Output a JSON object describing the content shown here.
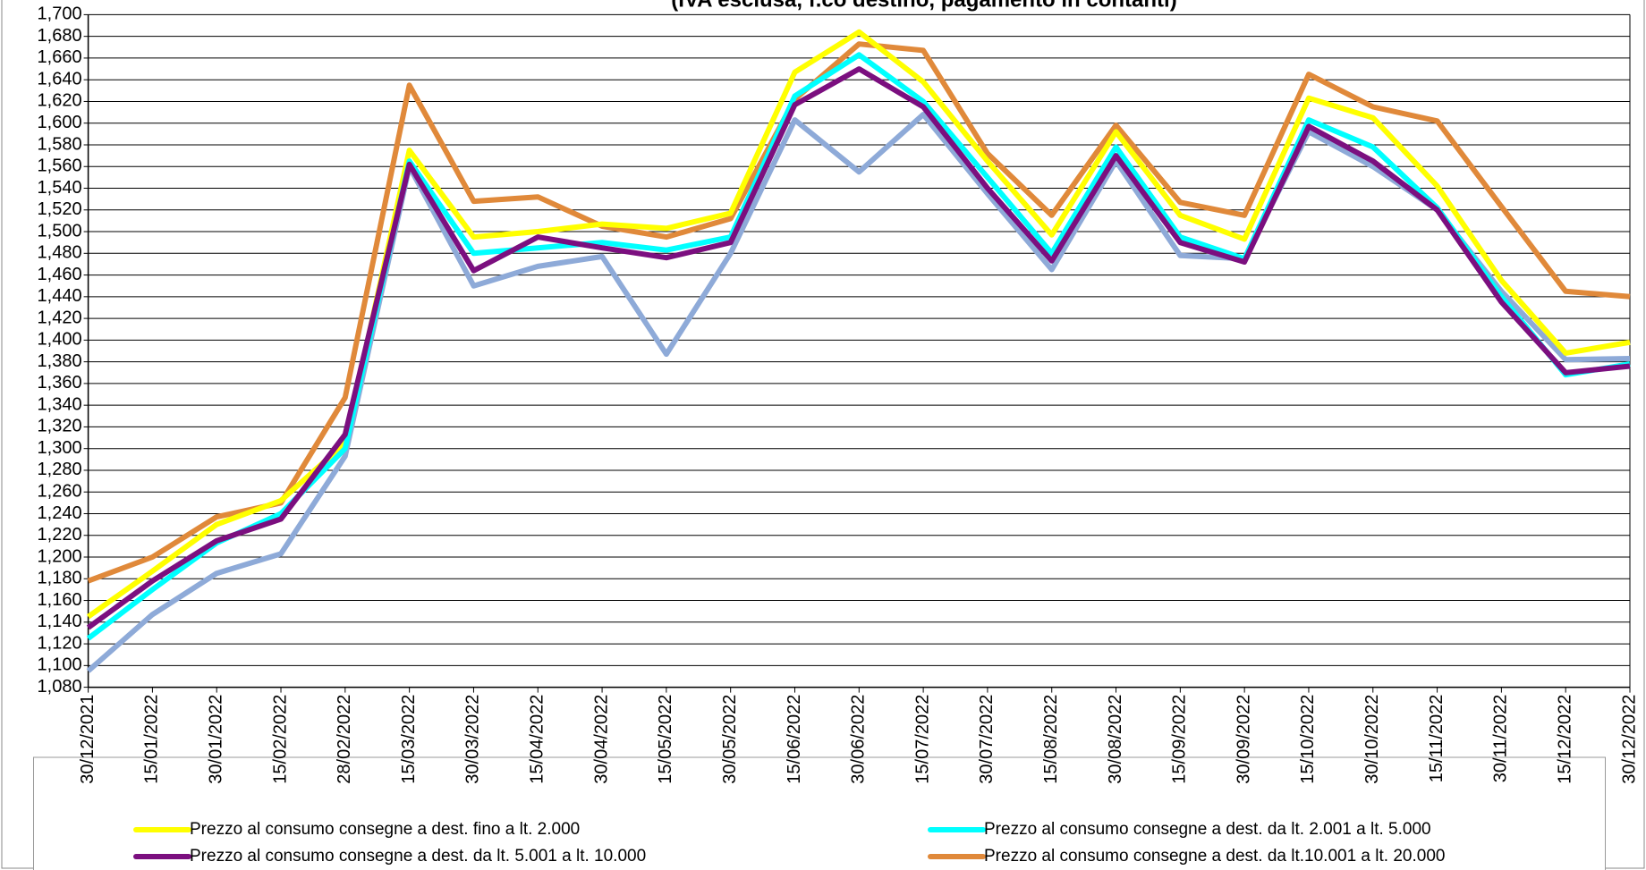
{
  "chart_data": {
    "type": "line",
    "title": "(IVA esclusa, f.co destino, pagamento in contanti)",
    "categories": [
      "30/12/2021",
      "15/01/2022",
      "30/01/2022",
      "15/02/2022",
      "28/02/2022",
      "15/03/2022",
      "30/03/2022",
      "15/04/2022",
      "30/04/2022",
      "15/05/2022",
      "30/05/2022",
      "15/06/2022",
      "30/06/2022",
      "15/07/2022",
      "30/07/2022",
      "15/08/2022",
      "30/08/2022",
      "15/09/2022",
      "30/09/2022",
      "15/10/2022",
      "30/10/2022",
      "15/11/2022",
      "30/11/2022",
      "15/12/2022",
      "30/12/2022"
    ],
    "series": [
      {
        "name": "Prezzo al consumo consegne a dest. fino a lt. 2.000",
        "color": "#ffff00",
        "values": [
          1145,
          1187,
          1230,
          1252,
          1305,
          1575,
          1495,
          1500,
          1507,
          1503,
          1517,
          1647,
          1684,
          1638,
          1565,
          1497,
          1592,
          1515,
          1493,
          1623,
          1605,
          1542,
          1455,
          1388,
          1398
        ]
      },
      {
        "name": "Prezzo al consumo consegne a dest. da lt. 2.001 a lt. 5.000",
        "color": "#00ffff",
        "values": [
          1125,
          1170,
          1213,
          1240,
          1300,
          1565,
          1480,
          1485,
          1490,
          1483,
          1495,
          1625,
          1663,
          1620,
          1550,
          1480,
          1578,
          1495,
          1475,
          1603,
          1578,
          1522,
          1440,
          1368,
          1378
        ]
      },
      {
        "name": "Prezzo al consumo consegne a dest. da lt. 5.001 a lt. 10.000",
        "color": "#7b0f7f",
        "values": [
          1135,
          1178,
          1215,
          1235,
          1313,
          1562,
          1464,
          1495,
          1485,
          1476,
          1490,
          1617,
          1650,
          1615,
          1540,
          1473,
          1570,
          1490,
          1472,
          1597,
          1565,
          1520,
          1435,
          1370,
          1376
        ]
      },
      {
        "name": "Prezzo al consumo consegne a dest. da lt.10.001 a lt. 20.000",
        "color": "#e0893a",
        "values": [
          1178,
          1200,
          1237,
          1250,
          1347,
          1635,
          1528,
          1532,
          1505,
          1495,
          1512,
          1622,
          1673,
          1667,
          1572,
          1515,
          1598,
          1527,
          1515,
          1645,
          1615,
          1602,
          1523,
          1445,
          1440
        ]
      },
      {
        "color": "#8eaad8",
        "values": [
          1095,
          1147,
          1185,
          1203,
          1293,
          1560,
          1450,
          1468,
          1477,
          1387,
          1480,
          1603,
          1555,
          1608,
          1535,
          1465,
          1565,
          1478,
          1475,
          1592,
          1560,
          1520,
          1445,
          1382,
          1383
        ]
      }
    ],
    "ylim": [
      1080,
      1700
    ],
    "yticks": [
      {
        "value": 1080,
        "label": "1,080"
      },
      {
        "value": 1100,
        "label": "1,100"
      },
      {
        "value": 1120,
        "label": "1,120"
      },
      {
        "value": 1140,
        "label": "1,140"
      },
      {
        "value": 1160,
        "label": "1,160"
      },
      {
        "value": 1180,
        "label": "1,180"
      },
      {
        "value": 1200,
        "label": "1,200"
      },
      {
        "value": 1220,
        "label": "1,220"
      },
      {
        "value": 1240,
        "label": "1,240"
      },
      {
        "value": 1260,
        "label": "1,260"
      },
      {
        "value": 1280,
        "label": "1,280"
      },
      {
        "value": 1300,
        "label": "1,300"
      },
      {
        "value": 1320,
        "label": "1,320"
      },
      {
        "value": 1340,
        "label": "1,340"
      },
      {
        "value": 1360,
        "label": "1,360"
      },
      {
        "value": 1380,
        "label": "1,380"
      },
      {
        "value": 1400,
        "label": "1,400"
      },
      {
        "value": 1420,
        "label": "1,420"
      },
      {
        "value": 1440,
        "label": "1,440"
      },
      {
        "value": 1460,
        "label": "1,460"
      },
      {
        "value": 1480,
        "label": "1,480"
      },
      {
        "value": 1500,
        "label": "1,500"
      },
      {
        "value": 1520,
        "label": "1,520"
      },
      {
        "value": 1540,
        "label": "1,540"
      },
      {
        "value": 1560,
        "label": "1,560"
      },
      {
        "value": 1580,
        "label": "1,580"
      },
      {
        "value": 1600,
        "label": "1,600"
      },
      {
        "value": 1620,
        "label": "1,620"
      },
      {
        "value": 1640,
        "label": "1,640"
      },
      {
        "value": 1660,
        "label": "1,660"
      },
      {
        "value": 1680,
        "label": "1,680"
      },
      {
        "value": 1700,
        "label": "1,700"
      }
    ],
    "grid": true
  }
}
